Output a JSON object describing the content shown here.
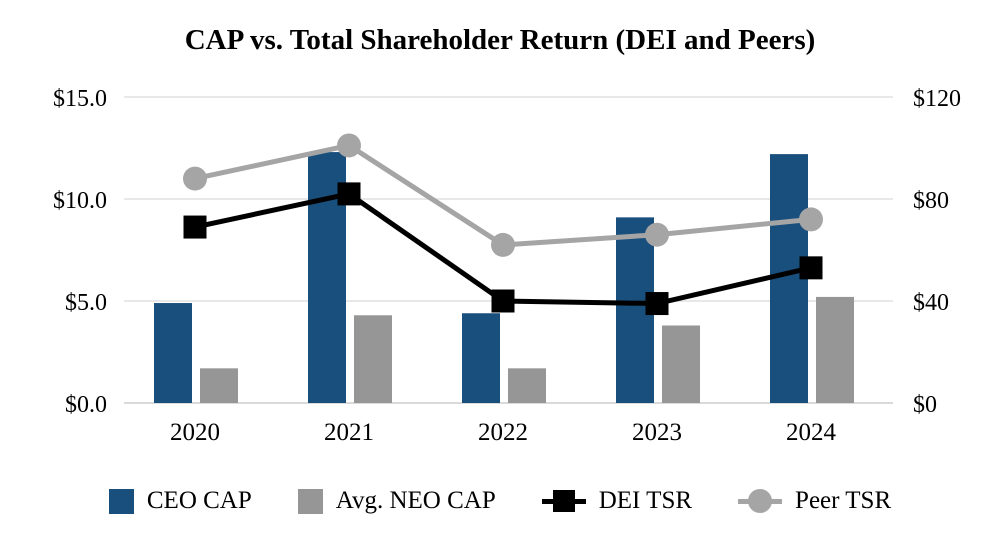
{
  "chart_data": {
    "type": "combo-bar-line",
    "title": "CAP vs. Total Shareholder Return (DEI and Peers)",
    "categories": [
      "2020",
      "2021",
      "2022",
      "2023",
      "2024"
    ],
    "series": [
      {
        "name": "CEO CAP",
        "type": "bar",
        "axis": "left",
        "color": "#194F7D",
        "values": [
          4.9,
          12.3,
          4.4,
          9.1,
          12.2
        ]
      },
      {
        "name": "Avg. NEO CAP",
        "type": "bar",
        "axis": "left",
        "color": "#969696",
        "values": [
          1.7,
          4.3,
          1.7,
          3.8,
          5.2
        ]
      },
      {
        "name": "DEI TSR",
        "type": "line",
        "marker": "square",
        "axis": "right",
        "color": "#000000",
        "values": [
          69,
          82,
          40,
          39,
          53
        ]
      },
      {
        "name": "Peer TSR",
        "type": "line",
        "marker": "circle",
        "axis": "right",
        "color": "#A5A5A5",
        "values": [
          88,
          101,
          62,
          66,
          72
        ]
      }
    ],
    "left_axis": {
      "min": 0,
      "max": 15,
      "tick_values": [
        0,
        5,
        10,
        15
      ],
      "tick_labels": [
        "$0.0",
        "$5.0",
        "$10.0",
        "$15.0"
      ]
    },
    "right_axis": {
      "min": 0,
      "max": 120,
      "tick_values": [
        0,
        40,
        80,
        120
      ],
      "tick_labels": [
        "$0",
        "$40",
        "$80",
        "$120"
      ]
    },
    "grid": true,
    "legend_position": "bottom"
  },
  "colors": {
    "gridline": "#E8E8E8",
    "baseline": "#DADADA",
    "background": "#FFFFFF",
    "text": "#000000"
  }
}
